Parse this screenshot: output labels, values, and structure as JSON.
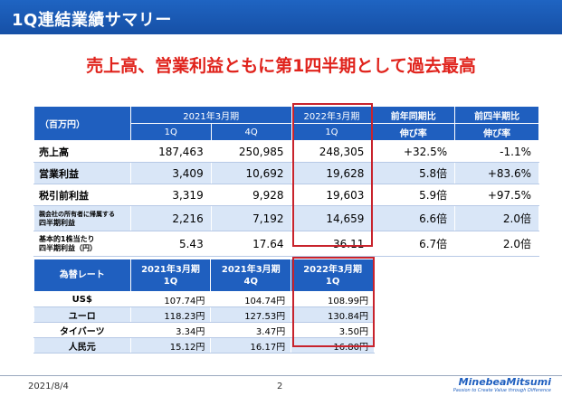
{
  "title": "1Q連結業績サマリー",
  "headline": "売上高、営業利益ともに第1四半期として過去最高",
  "main_table": {
    "unit": "（百万円）",
    "group_prev": "2021年3月期",
    "group_curr": "2022年3月期",
    "col_yoy": [
      "前年同期比",
      "伸び率"
    ],
    "col_qoq": [
      "前四半期比",
      "伸び率"
    ],
    "sub_prev_1q": "1Q",
    "sub_prev_4q": "4Q",
    "sub_curr_1q": "1Q",
    "rows": [
      {
        "label": "売上高",
        "prev_1q": "187,463",
        "prev_4q": "250,985",
        "curr_1q": "248,305",
        "yoy": "+32.5%",
        "qoq": "-1.1%"
      },
      {
        "label": "営業利益",
        "prev_1q": "3,409",
        "prev_4q": "10,692",
        "curr_1q": "19,628",
        "yoy": "5.8倍",
        "qoq": "+83.6%"
      },
      {
        "label": "税引前利益",
        "prev_1q": "3,319",
        "prev_4q": "9,928",
        "curr_1q": "19,603",
        "yoy": "5.9倍",
        "qoq": "+97.5%"
      },
      {
        "label_line1": "親会社の所有者に帰属する",
        "label_line2": "四半期利益",
        "prev_1q": "2,216",
        "prev_4q": "7,192",
        "curr_1q": "14,659",
        "yoy": "6.6倍",
        "qoq": "2.0倍"
      },
      {
        "label_line1": "基本的1株当たり",
        "label_line2": "四半期利益（円）",
        "prev_1q": "5.43",
        "prev_4q": "17.64",
        "curr_1q": "36.11",
        "yoy": "6.7倍",
        "qoq": "2.0倍"
      }
    ]
  },
  "fx_table": {
    "header_label": "為替レート",
    "col1": [
      "2021年3月期",
      "1Q"
    ],
    "col2": [
      "2021年3月期",
      "4Q"
    ],
    "col3": [
      "2022年3月期",
      "1Q"
    ],
    "rows": [
      {
        "label": "US$",
        "c1": "107.74円",
        "c2": "104.74円",
        "c3": "108.99円"
      },
      {
        "label": "ユーロ",
        "c1": "118.23円",
        "c2": "127.53円",
        "c3": "130.84円"
      },
      {
        "label": "タイバーツ",
        "c1": "3.34円",
        "c2": "3.47円",
        "c3": "3.50円"
      },
      {
        "label": "人民元",
        "c1": "15.12円",
        "c2": "16.17円",
        "c3": "16.80円"
      }
    ]
  },
  "footer": {
    "date": "2021/8/4",
    "page": "2",
    "logo": "MinebeaMitsumi",
    "logo_tagline": "Passion to Create Value through Difference"
  },
  "colors": {
    "title_bar": "#1f5fbf",
    "headline": "#e0231c",
    "table_header": "#1f5fbf",
    "row_alt": "#d9e6f7",
    "highlight_border": "#c8232c"
  }
}
